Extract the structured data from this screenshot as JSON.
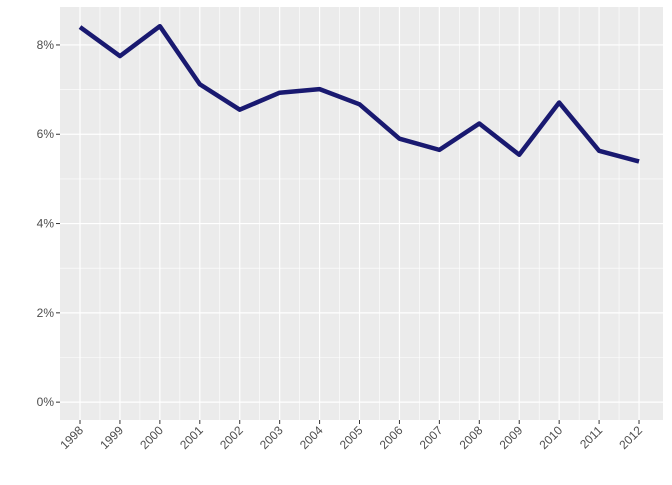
{
  "chart_data": {
    "type": "line",
    "title": "",
    "xlabel": "",
    "ylabel": "",
    "x": [
      "1998",
      "1999",
      "2000",
      "2001",
      "2002",
      "2003",
      "2004",
      "2005",
      "2006",
      "2007",
      "2008",
      "2009",
      "2010",
      "2011",
      "2012"
    ],
    "series": [
      {
        "values": [
          8.4,
          7.75,
          8.42,
          7.12,
          6.55,
          6.93,
          7.01,
          6.67,
          5.9,
          5.65,
          6.24,
          5.54,
          6.71,
          5.63,
          5.39
        ],
        "color": "#191970"
      }
    ],
    "ylim": [
      -0.4,
      8.85
    ],
    "y_ticks": [
      0,
      2,
      4,
      6,
      8
    ],
    "y_tick_labels": [
      "0%",
      "2%",
      "4%",
      "6%",
      "8%"
    ],
    "x_tick_rotation_deg": 45,
    "grid": true,
    "legend": "none",
    "panel_color": "#EBEBEB",
    "grid_color": "#FFFFFF"
  }
}
